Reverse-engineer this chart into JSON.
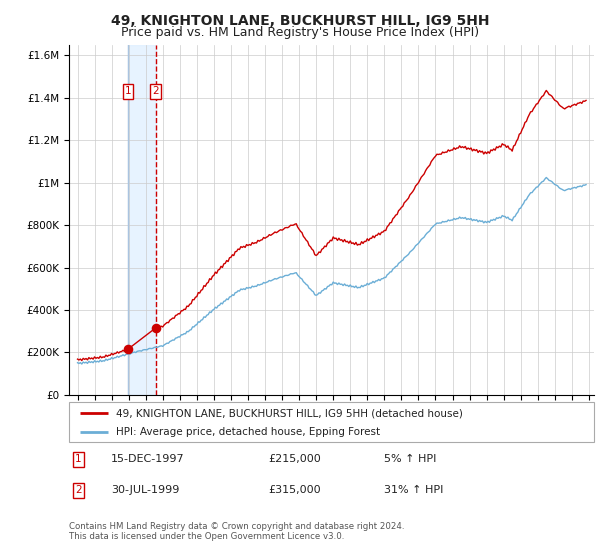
{
  "title": "49, KNIGHTON LANE, BUCKHURST HILL, IG9 5HH",
  "subtitle": "Price paid vs. HM Land Registry's House Price Index (HPI)",
  "legend_line1": "49, KNIGHTON LANE, BUCKHURST HILL, IG9 5HH (detached house)",
  "legend_line2": "HPI: Average price, detached house, Epping Forest",
  "footer": "Contains HM Land Registry data © Crown copyright and database right 2024.\nThis data is licensed under the Open Government Licence v3.0.",
  "transactions": [
    {
      "num": 1,
      "date": "15-DEC-1997",
      "price": "£215,000",
      "pct": "5% ↑ HPI"
    },
    {
      "num": 2,
      "date": "30-JUL-1999",
      "price": "£315,000",
      "pct": "31% ↑ HPI"
    }
  ],
  "t1_year": 1997.958,
  "t2_year": 1999.58,
  "t1_price": 215000,
  "t2_price": 315000,
  "red_line_color": "#cc0000",
  "blue_line_color": "#6baed6",
  "vline1_color": "#aac4e0",
  "vline2_color": "#cc0000",
  "shade_color": "#ddeeff",
  "box_color": "#cc0000",
  "ylim": [
    0,
    1650000
  ],
  "xlim_start": 1994.5,
  "xlim_end": 2025.3,
  "background_color": "#ffffff",
  "grid_color": "#cccccc",
  "title_fontsize": 10,
  "subtitle_fontsize": 9
}
